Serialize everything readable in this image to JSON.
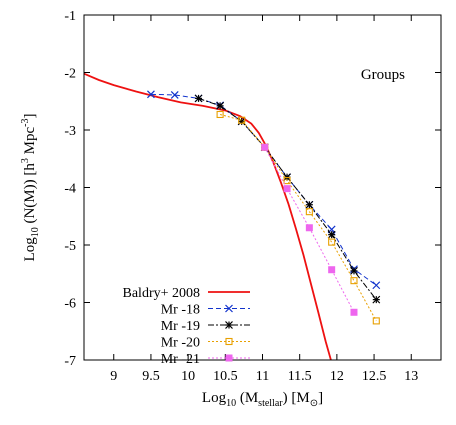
{
  "chart_data": {
    "type": "line",
    "xlim": [
      8.6,
      13.4
    ],
    "ylim": [
      -7,
      -1
    ],
    "x_ticks": [
      "9",
      "9.5",
      "10",
      "10.5",
      "11",
      "11.5",
      "12",
      "12.5",
      "13"
    ],
    "y_ticks": [
      "-1",
      "-2",
      "-3",
      "-4",
      "-5",
      "-6",
      "-7"
    ],
    "grid": false,
    "legend_position": "bottom-left",
    "annotation": "Groups",
    "xlabel": {
      "base": "Log",
      "sub": "10",
      "mid": " (M",
      "sub2": "stellar",
      "end": ") [M",
      "sym": "⊙",
      "close": "]"
    },
    "ylabel": {
      "base": "Log",
      "sub": "10",
      "mid": " (N(M)) [h",
      "sup": "3",
      "mid2": " Mpc",
      "sup2": "-3",
      "close": "]"
    },
    "series": [
      {
        "name": "Baldry+ 2008",
        "color": "#ee1111",
        "dash": "",
        "marker": "none",
        "x": [
          8.6,
          8.8,
          9.0,
          9.3,
          9.6,
          9.9,
          10.2,
          10.5,
          10.7,
          10.85,
          10.95,
          11.05,
          11.15,
          11.25,
          11.35,
          11.45,
          11.55,
          11.65,
          11.75,
          11.85,
          11.92
        ],
        "y": [
          -2.02,
          -2.13,
          -2.22,
          -2.33,
          -2.43,
          -2.52,
          -2.58,
          -2.66,
          -2.76,
          -2.89,
          -3.05,
          -3.28,
          -3.58,
          -3.92,
          -4.29,
          -4.72,
          -5.17,
          -5.67,
          -6.17,
          -6.68,
          -7.0
        ]
      },
      {
        "name": "Mr -18",
        "color": "#1133cc",
        "dash": "5,3",
        "marker": "x",
        "x": [
          9.5,
          9.82,
          10.14,
          10.43,
          10.72,
          11.03,
          11.33,
          11.63,
          11.93,
          12.23,
          12.53
        ],
        "y": [
          -2.38,
          -2.39,
          -2.45,
          -2.57,
          -2.85,
          -3.3,
          -3.82,
          -4.3,
          -4.73,
          -5.42,
          -5.7
        ]
      },
      {
        "name": "Mr -19",
        "color": "#000000",
        "dash": "6,2,2,2",
        "marker": "star",
        "x": [
          10.14,
          10.43,
          10.72,
          11.03,
          11.33,
          11.63,
          11.93,
          12.23,
          12.53
        ],
        "y": [
          -2.45,
          -2.58,
          -2.85,
          -3.3,
          -3.82,
          -4.3,
          -4.82,
          -5.45,
          -5.95
        ]
      },
      {
        "name": "Mr -20",
        "color": "#e8a000",
        "dash": "2,2",
        "marker": "square",
        "x": [
          10.43,
          10.72,
          11.03,
          11.33,
          11.63,
          11.93,
          12.23,
          12.53
        ],
        "y": [
          -2.73,
          -2.83,
          -3.3,
          -3.88,
          -4.42,
          -4.95,
          -5.62,
          -6.32
        ]
      },
      {
        "name": "Mr -21",
        "color": "#ee66ee",
        "dash": "2,2",
        "marker": "filled-square",
        "x": [
          11.03,
          11.33,
          11.63,
          11.93,
          12.23
        ],
        "y": [
          -3.3,
          -4.02,
          -4.7,
          -5.43,
          -6.17
        ]
      }
    ]
  }
}
